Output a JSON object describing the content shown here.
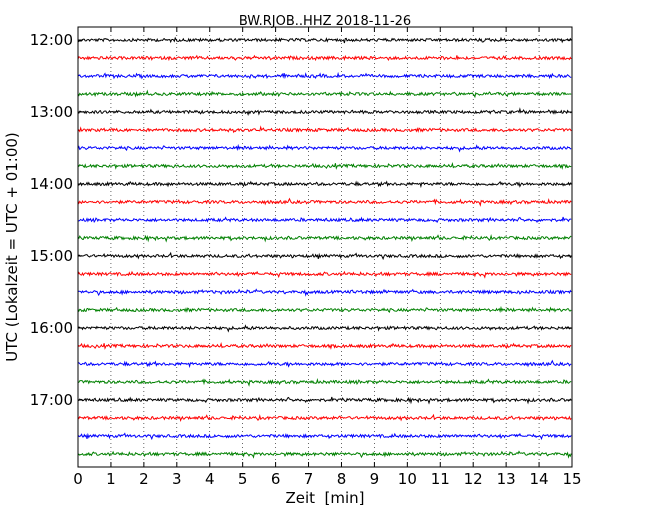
{
  "chart_data": {
    "type": "line",
    "title": "BW.RJOB..HHZ 2018-11-26",
    "xlabel": "Zeit  [min]",
    "ylabel": "UTC (Lokalzeit = UTC + 01:00)",
    "xlim": [
      0,
      15
    ],
    "x_ticks": [
      "0",
      "1",
      "2",
      "3",
      "4",
      "5",
      "6",
      "7",
      "8",
      "9",
      "10",
      "11",
      "12",
      "13",
      "14",
      "15"
    ],
    "y_ticks": [
      "12:00",
      "13:00",
      "14:00",
      "15:00",
      "16:00",
      "17:00"
    ],
    "grid": "vertical-dotted",
    "series": [
      {
        "start": "12:00",
        "color": "#000000"
      },
      {
        "start": "12:15",
        "color": "#ff0000"
      },
      {
        "start": "12:30",
        "color": "#0000ff"
      },
      {
        "start": "12:45",
        "color": "#008000"
      },
      {
        "start": "13:00",
        "color": "#000000"
      },
      {
        "start": "13:15",
        "color": "#ff0000"
      },
      {
        "start": "13:30",
        "color": "#0000ff"
      },
      {
        "start": "13:45",
        "color": "#008000"
      },
      {
        "start": "14:00",
        "color": "#000000"
      },
      {
        "start": "14:15",
        "color": "#ff0000"
      },
      {
        "start": "14:30",
        "color": "#0000ff"
      },
      {
        "start": "14:45",
        "color": "#008000"
      },
      {
        "start": "15:00",
        "color": "#000000"
      },
      {
        "start": "15:15",
        "color": "#ff0000"
      },
      {
        "start": "15:30",
        "color": "#0000ff"
      },
      {
        "start": "15:45",
        "color": "#008000"
      },
      {
        "start": "16:00",
        "color": "#000000"
      },
      {
        "start": "16:15",
        "color": "#ff0000"
      },
      {
        "start": "16:30",
        "color": "#0000ff"
      },
      {
        "start": "16:45",
        "color": "#008000"
      },
      {
        "start": "17:00",
        "color": "#000000"
      },
      {
        "start": "17:15",
        "color": "#ff0000"
      },
      {
        "start": "17:30",
        "color": "#0000ff"
      },
      {
        "start": "17:45",
        "color": "#008000"
      }
    ]
  }
}
